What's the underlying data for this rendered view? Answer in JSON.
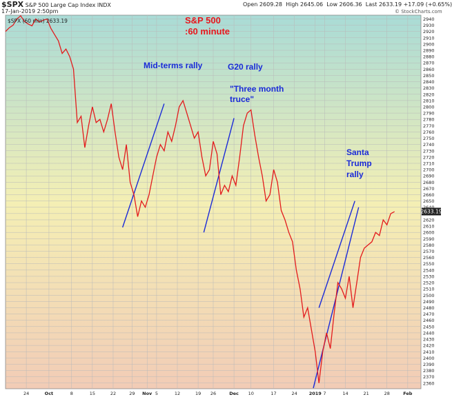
{
  "header": {
    "ticker": "$SPX",
    "name": "S&P 500 Large Cap Index",
    "exchange": "INDX",
    "date": "17-Jan-2019 2:50pm",
    "open_label": "Open",
    "open_value": "2609.28",
    "high_label": "High",
    "high_value": "2645.06",
    "low_label": "Low",
    "low_value": "2606.36",
    "last_label": "Last",
    "last_value": "2633.19",
    "change": "+17.09 (+0.65%)",
    "watermark": "© StockCharts.com",
    "legend": "$SPX (60 min) 2633.19"
  },
  "annotations": {
    "title_line1": "S&P 500",
    "title_line2": ":60 minute",
    "midterms": "Mid-terms rally",
    "g20": "G20 rally",
    "truce": "\"Three month truce\"",
    "santa_line1": "Santa",
    "santa_line2": "Trump",
    "santa_line3": "rally"
  },
  "colors": {
    "price": "#e31a1c",
    "trend": "#1a2ad8",
    "bg_top": "#a9dbd6",
    "bg_mid": "#f4efb4",
    "bg_bottom": "#f2ccb6"
  },
  "chart_data": {
    "type": "line",
    "series": [
      {
        "name": "$SPX (60 min)",
        "points": [
          [
            0,
            2920
          ],
          [
            2,
            2926
          ],
          [
            4,
            2930
          ],
          [
            6,
            2940
          ],
          [
            8,
            2945
          ],
          [
            10,
            2936
          ],
          [
            12,
            2932
          ],
          [
            14,
            2929
          ],
          [
            16,
            2940
          ],
          [
            18,
            2935
          ],
          [
            20,
            2938
          ],
          [
            22,
            2940
          ],
          [
            24,
            2925
          ],
          [
            26,
            2915
          ],
          [
            28,
            2905
          ],
          [
            30,
            2885
          ],
          [
            32,
            2892
          ],
          [
            34,
            2880
          ],
          [
            36,
            2860
          ],
          [
            38,
            2775
          ],
          [
            40,
            2785
          ],
          [
            42,
            2735
          ],
          [
            44,
            2770
          ],
          [
            46,
            2800
          ],
          [
            48,
            2775
          ],
          [
            50,
            2780
          ],
          [
            52,
            2760
          ],
          [
            54,
            2780
          ],
          [
            56,
            2805
          ],
          [
            58,
            2760
          ],
          [
            60,
            2720
          ],
          [
            62,
            2700
          ],
          [
            64,
            2740
          ],
          [
            66,
            2680
          ],
          [
            68,
            2660
          ],
          [
            70,
            2625
          ],
          [
            72,
            2650
          ],
          [
            74,
            2640
          ],
          [
            76,
            2660
          ],
          [
            78,
            2690
          ],
          [
            80,
            2720
          ],
          [
            82,
            2740
          ],
          [
            84,
            2730
          ],
          [
            86,
            2760
          ],
          [
            88,
            2745
          ],
          [
            90,
            2770
          ],
          [
            92,
            2800
          ],
          [
            94,
            2810
          ],
          [
            96,
            2790
          ],
          [
            98,
            2770
          ],
          [
            100,
            2750
          ],
          [
            102,
            2760
          ],
          [
            104,
            2720
          ],
          [
            106,
            2690
          ],
          [
            108,
            2700
          ],
          [
            110,
            2745
          ],
          [
            112,
            2725
          ],
          [
            114,
            2660
          ],
          [
            116,
            2675
          ],
          [
            118,
            2665
          ],
          [
            120,
            2690
          ],
          [
            122,
            2675
          ],
          [
            124,
            2720
          ],
          [
            126,
            2770
          ],
          [
            128,
            2790
          ],
          [
            130,
            2795
          ],
          [
            132,
            2755
          ],
          [
            134,
            2720
          ],
          [
            136,
            2690
          ],
          [
            138,
            2650
          ],
          [
            140,
            2660
          ],
          [
            142,
            2700
          ],
          [
            144,
            2680
          ],
          [
            146,
            2635
          ],
          [
            148,
            2620
          ],
          [
            150,
            2600
          ],
          [
            152,
            2585
          ],
          [
            154,
            2540
          ],
          [
            156,
            2510
          ],
          [
            158,
            2465
          ],
          [
            160,
            2480
          ],
          [
            162,
            2445
          ],
          [
            164,
            2410
          ],
          [
            166,
            2360
          ],
          [
            168,
            2410
          ],
          [
            170,
            2440
          ],
          [
            172,
            2415
          ],
          [
            174,
            2470
          ],
          [
            176,
            2520
          ],
          [
            178,
            2510
          ],
          [
            180,
            2495
          ],
          [
            182,
            2530
          ],
          [
            184,
            2480
          ],
          [
            186,
            2520
          ],
          [
            188,
            2560
          ],
          [
            190,
            2575
          ],
          [
            192,
            2580
          ],
          [
            194,
            2585
          ],
          [
            196,
            2600
          ],
          [
            198,
            2595
          ],
          [
            200,
            2620
          ],
          [
            202,
            2612
          ],
          [
            204,
            2630
          ],
          [
            206,
            2633
          ]
        ]
      }
    ],
    "trendlines": [
      [
        [
          62,
          2608
        ],
        [
          84,
          2805
        ]
      ],
      [
        [
          105,
          2600
        ],
        [
          121,
          2782
        ]
      ],
      [
        [
          166,
          2480
        ],
        [
          185,
          2650
        ]
      ],
      [
        [
          163,
          2352
        ],
        [
          187,
          2640
        ]
      ]
    ],
    "x_ticks": [
      {
        "t": 11,
        "label": "24"
      },
      {
        "t": 23,
        "label": "Oct"
      },
      {
        "t": 35,
        "label": "8"
      },
      {
        "t": 46,
        "label": "15"
      },
      {
        "t": 57,
        "label": "22"
      },
      {
        "t": 67,
        "label": "29"
      },
      {
        "t": 75,
        "label": "Nov"
      },
      {
        "t": 80,
        "label": "5"
      },
      {
        "t": 91,
        "label": "12"
      },
      {
        "t": 102,
        "label": "19"
      },
      {
        "t": 110,
        "label": "26"
      },
      {
        "t": 121,
        "label": "Dec"
      },
      {
        "t": 130,
        "label": "10"
      },
      {
        "t": 142,
        "label": "17"
      },
      {
        "t": 153,
        "label": "24"
      },
      {
        "t": 164,
        "label": "2019"
      },
      {
        "t": 169,
        "label": "7"
      },
      {
        "t": 180,
        "label": "14"
      },
      {
        "t": 191,
        "label": "21"
      },
      {
        "t": 202,
        "label": "28"
      },
      {
        "t": 213,
        "label": "Feb"
      }
    ],
    "y_ticks": [
      2940,
      2930,
      2920,
      2910,
      2900,
      2890,
      2880,
      2870,
      2860,
      2850,
      2840,
      2830,
      2820,
      2810,
      2800,
      2790,
      2780,
      2770,
      2760,
      2750,
      2740,
      2730,
      2720,
      2710,
      2700,
      2690,
      2680,
      2670,
      2660,
      2650,
      2640,
      2630,
      2620,
      2610,
      2600,
      2590,
      2580,
      2570,
      2560,
      2550,
      2540,
      2530,
      2520,
      2510,
      2500,
      2490,
      2480,
      2470,
      2460,
      2450,
      2440,
      2430,
      2420,
      2410,
      2400,
      2390,
      2380,
      2370,
      2360
    ],
    "last_value_label": "2633.19",
    "ylim": [
      2351,
      2946
    ],
    "xlim": [
      0,
      220
    ]
  }
}
